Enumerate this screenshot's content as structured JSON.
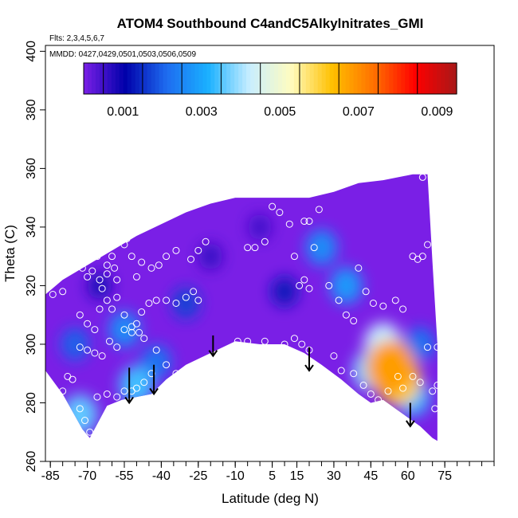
{
  "chart_data": {
    "type": "heatmap",
    "title": "ATOM4 Southbound C4andC5Alkylnitrates_GMI",
    "annotations": [
      "Flts: 2,3,4,5,6,7",
      "MMDD: 0427,0429,0501,0503,0506,0509"
    ],
    "xlabel": "Latitude (deg N)",
    "ylabel": "Theta (C)",
    "xlim": [
      -87,
      95
    ],
    "ylim": [
      260,
      402
    ],
    "x_ticks": [
      -85,
      -70,
      -55,
      -40,
      -25,
      -10,
      5,
      15,
      30,
      45,
      60,
      75
    ],
    "y_ticks": [
      260,
      280,
      300,
      320,
      340,
      360,
      380,
      400
    ],
    "colorbar": {
      "range": [
        0,
        0.0095
      ],
      "tick_values": [
        0.001,
        0.003,
        0.005,
        0.007,
        0.009
      ],
      "tick_labels": [
        "0.001",
        "0.003",
        "0.005",
        "0.007",
        "0.009"
      ],
      "colors": [
        "#7a1fe6",
        "#0000aa",
        "#1e6cf0",
        "#1ab0ff",
        "#c8eeff",
        "#fffcc0",
        "#ffc000",
        "#ff7000",
        "#ff0000",
        "#a81818"
      ]
    },
    "field_boundary": {
      "top": [
        [
          -87,
          317
        ],
        [
          -80,
          322
        ],
        [
          -70,
          327
        ],
        [
          -60,
          332
        ],
        [
          -50,
          337
        ],
        [
          -40,
          341
        ],
        [
          -30,
          345
        ],
        [
          -20,
          348
        ],
        [
          -10,
          350
        ],
        [
          0,
          350
        ],
        [
          10,
          350
        ],
        [
          20,
          350
        ],
        [
          30,
          352
        ],
        [
          40,
          355
        ],
        [
          50,
          356
        ],
        [
          62,
          358
        ],
        [
          68,
          358
        ],
        [
          70,
          328
        ],
        [
          72,
          300
        ],
        [
          72,
          286
        ],
        [
          72,
          267
        ]
      ],
      "bottom": [
        [
          -87,
          291
        ],
        [
          -80,
          283
        ],
        [
          -72,
          271
        ],
        [
          -69,
          268
        ],
        [
          -62,
          279
        ],
        [
          -56,
          281
        ],
        [
          -50,
          282
        ],
        [
          -44,
          283
        ],
        [
          -38,
          288
        ],
        [
          -30,
          293
        ],
        [
          -20,
          297
        ],
        [
          -10,
          301
        ],
        [
          0,
          300
        ],
        [
          10,
          300
        ],
        [
          18,
          297
        ],
        [
          25,
          293
        ],
        [
          33,
          288
        ],
        [
          40,
          283
        ],
        [
          45,
          280
        ],
        [
          50,
          281
        ],
        [
          55,
          278
        ],
        [
          60,
          275
        ],
        [
          65,
          272
        ],
        [
          70,
          268
        ],
        [
          72,
          267
        ]
      ]
    },
    "concentration_features": [
      {
        "lat": 53,
        "theta": 292,
        "value": 0.0068
      },
      {
        "lat": 56,
        "theta": 288,
        "value": 0.006
      },
      {
        "lat": 50,
        "theta": 300,
        "value": 0.0042
      },
      {
        "lat": 45,
        "theta": 291,
        "value": 0.0038
      },
      {
        "lat": 62,
        "theta": 282,
        "value": 0.0033
      },
      {
        "lat": 35,
        "theta": 320,
        "value": 0.0028
      },
      {
        "lat": 25,
        "theta": 333,
        "value": 0.0026
      },
      {
        "lat": -50,
        "theta": 286,
        "value": 0.0034
      },
      {
        "lat": -73,
        "theta": 276,
        "value": 0.0036
      },
      {
        "lat": -55,
        "theta": 305,
        "value": 0.0026
      },
      {
        "lat": -42,
        "theta": 294,
        "value": 0.0022
      },
      {
        "lat": -75,
        "theta": 300,
        "value": 0.002
      },
      {
        "lat": -30,
        "theta": 314,
        "value": 0.0017
      },
      {
        "lat": 10,
        "theta": 318,
        "value": 0.0013
      },
      {
        "lat": 65,
        "theta": 300,
        "value": 0.0022
      },
      {
        "lat": 0,
        "theta": 340,
        "value": 0.0005
      },
      {
        "lat": -20,
        "theta": 330,
        "value": 0.0006
      },
      {
        "lat": -65,
        "theta": 320,
        "value": 0.0008
      }
    ],
    "observations": [
      [
        -84,
        317
      ],
      [
        -80,
        318
      ],
      [
        -76,
        329
      ],
      [
        -74,
        331
      ],
      [
        -73,
        327
      ],
      [
        -72,
        326
      ],
      [
        -70,
        323
      ],
      [
        -68,
        325
      ],
      [
        -66,
        330
      ],
      [
        -65,
        322
      ],
      [
        -64,
        319
      ],
      [
        -62,
        324
      ],
      [
        -62,
        327
      ],
      [
        -60,
        330
      ],
      [
        -58,
        322
      ],
      [
        -59,
        326
      ],
      [
        -55,
        334
      ],
      [
        -54,
        336
      ],
      [
        -52,
        330
      ],
      [
        -50,
        323
      ],
      [
        -48,
        328
      ],
      [
        -44,
        326
      ],
      [
        -41,
        327
      ],
      [
        -38,
        330
      ],
      [
        -34,
        332
      ],
      [
        -28,
        329
      ],
      [
        -25,
        332
      ],
      [
        -22,
        335
      ],
      [
        -18,
        350
      ],
      [
        -15,
        351
      ],
      [
        -5,
        333
      ],
      [
        -2,
        333
      ],
      [
        2,
        335
      ],
      [
        5,
        347
      ],
      [
        8,
        345
      ],
      [
        -73,
        310
      ],
      [
        -70,
        307
      ],
      [
        -67,
        305
      ],
      [
        -65,
        312
      ],
      [
        -62,
        315
      ],
      [
        -60,
        312
      ],
      [
        -58,
        316
      ],
      [
        -55,
        310
      ],
      [
        -52,
        306
      ],
      [
        -50,
        307
      ],
      [
        -48,
        311
      ],
      [
        -45,
        314
      ],
      [
        -42,
        315
      ],
      [
        -38,
        315
      ],
      [
        -34,
        314
      ],
      [
        -30,
        316
      ],
      [
        -27,
        318
      ],
      [
        -25,
        315
      ],
      [
        -73,
        299
      ],
      [
        -70,
        298
      ],
      [
        -67,
        297
      ],
      [
        -64,
        296
      ],
      [
        -61,
        301
      ],
      [
        -58,
        299
      ],
      [
        -55,
        305
      ],
      [
        -52,
        304
      ],
      [
        -49,
        304
      ],
      [
        -47,
        302
      ],
      [
        -42,
        298
      ],
      [
        -38,
        293
      ],
      [
        -34,
        290
      ],
      [
        -30,
        288
      ],
      [
        -26,
        290
      ],
      [
        -22,
        293
      ],
      [
        -18,
        296
      ],
      [
        -9,
        301
      ],
      [
        -5,
        301
      ],
      [
        2,
        301
      ],
      [
        10,
        300
      ],
      [
        14,
        302
      ],
      [
        17,
        300
      ],
      [
        20,
        298
      ],
      [
        -80,
        284
      ],
      [
        -78,
        289
      ],
      [
        -76,
        288
      ],
      [
        -73,
        278
      ],
      [
        -71,
        274
      ],
      [
        -69,
        270
      ],
      [
        -66,
        282
      ],
      [
        -62,
        283
      ],
      [
        -58,
        282
      ],
      [
        -55,
        284
      ],
      [
        -52,
        284
      ],
      [
        -50,
        285
      ],
      [
        -47,
        287
      ],
      [
        -44,
        290
      ],
      [
        18,
        342
      ],
      [
        20,
        342
      ],
      [
        22,
        333
      ],
      [
        24,
        346
      ],
      [
        12,
        341
      ],
      [
        14,
        330
      ],
      [
        16,
        320
      ],
      [
        18,
        322
      ],
      [
        20,
        319
      ],
      [
        28,
        320
      ],
      [
        32,
        315
      ],
      [
        35,
        310
      ],
      [
        38,
        308
      ],
      [
        40,
        326
      ],
      [
        43,
        318
      ],
      [
        46,
        314
      ],
      [
        50,
        313
      ],
      [
        55,
        315
      ],
      [
        58,
        312
      ],
      [
        62,
        330
      ],
      [
        64,
        329
      ],
      [
        66,
        330
      ],
      [
        68,
        334
      ],
      [
        70,
        355
      ],
      [
        66,
        357
      ],
      [
        30,
        296
      ],
      [
        33,
        291
      ],
      [
        38,
        290
      ],
      [
        42,
        286
      ],
      [
        45,
        283
      ],
      [
        48,
        281
      ],
      [
        52,
        284
      ],
      [
        56,
        289
      ],
      [
        58,
        285
      ],
      [
        62,
        289
      ],
      [
        65,
        287
      ],
      [
        70,
        284
      ],
      [
        72,
        286
      ],
      [
        71,
        278
      ],
      [
        68,
        299
      ],
      [
        72,
        299
      ]
    ],
    "vertical_profile_arrows": [
      {
        "lat": -19,
        "theta_start": 303,
        "theta_end": 296
      },
      {
        "lat": 20,
        "theta_start": 299,
        "theta_end": 291
      },
      {
        "lat": 61,
        "theta_start": 280,
        "theta_end": 272
      },
      {
        "lat": -53,
        "theta_start": 292,
        "theta_end": 280
      },
      {
        "lat": -43,
        "theta_start": 293,
        "theta_end": 283
      }
    ]
  }
}
